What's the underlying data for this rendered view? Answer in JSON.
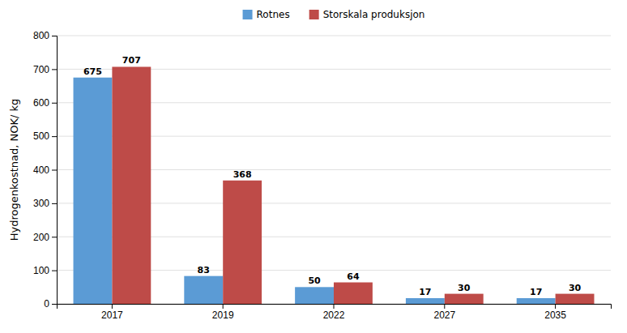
{
  "chart_data": {
    "type": "bar",
    "categories": [
      "2017",
      "2019",
      "2022",
      "2027",
      "2035"
    ],
    "series": [
      {
        "name": "Rotnes",
        "color": "#5B9BD5",
        "values": [
          675,
          83,
          50,
          17,
          17
        ]
      },
      {
        "name": "Storskala produksjon",
        "color": "#BE4B48",
        "values": [
          707,
          368,
          64,
          30,
          30
        ]
      }
    ],
    "ylabel": "Hydrogenkostnad, NOK/ kg",
    "ylim": [
      0,
      800
    ],
    "yticks": [
      0,
      100,
      200,
      300,
      400,
      500,
      600,
      700,
      800
    ],
    "grid": true,
    "data_labels": true,
    "legend": "top"
  }
}
